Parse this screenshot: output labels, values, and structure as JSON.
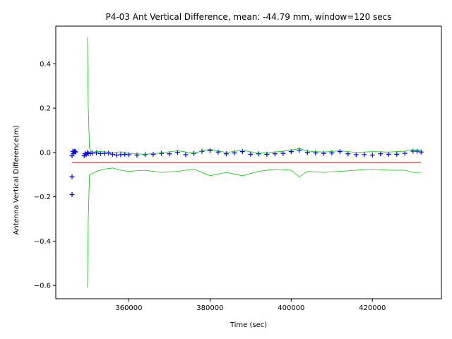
{
  "chart_data": {
    "type": "scatter",
    "title": "P4-03 Ant Vertical Difference, mean: -44.79 mm, window=120 secs",
    "xlabel": "Time (sec)",
    "ylabel": "Antenna Vertical Difference(m)",
    "xlim": [
      342000,
      437000
    ],
    "ylim": [
      -0.66,
      0.57
    ],
    "x_ticks": [
      360000,
      380000,
      400000,
      420000
    ],
    "x_tick_labels": [
      "360000",
      "380000",
      "400000",
      "420000"
    ],
    "y_ticks": [
      -0.6,
      -0.4,
      -0.2,
      0.0,
      0.2,
      0.4
    ],
    "y_tick_labels": [
      "−0.6",
      "−0.4",
      "−0.2",
      "0.0",
      "0.2",
      "0.4"
    ],
    "grid": false,
    "series": [
      {
        "marker": "plus",
        "color": "#0000ff",
        "x": [
          346000,
          346200,
          346300,
          346500,
          346700,
          346900,
          346000,
          346000,
          349000,
          349200,
          349500,
          349800,
          350000,
          350500,
          351000,
          352000,
          353000,
          354000,
          355000,
          356000,
          357000,
          358000,
          359000,
          360000,
          362000,
          364000,
          366000,
          368000,
          370000,
          372000,
          374000,
          376000,
          378000,
          380000,
          382000,
          384000,
          386000,
          388000,
          390000,
          392000,
          394000,
          396000,
          398000,
          400000,
          402000,
          404000,
          406000,
          408000,
          410000,
          412000,
          414000,
          416000,
          418000,
          420000,
          422000,
          424000,
          426000,
          428000,
          430000,
          431000,
          432000
        ],
        "y": [
          -0.015,
          0.005,
          -0.005,
          0.003,
          0.006,
          0.002,
          -0.11,
          -0.19,
          -0.015,
          -0.005,
          -0.01,
          0.0,
          -0.005,
          -0.005,
          -0.003,
          -0.002,
          -0.005,
          -0.004,
          -0.003,
          -0.008,
          -0.012,
          -0.01,
          -0.008,
          -0.01,
          -0.012,
          -0.01,
          -0.008,
          -0.004,
          -0.006,
          0.0,
          -0.01,
          -0.004,
          0.005,
          0.008,
          0.002,
          -0.006,
          -0.002,
          0.004,
          -0.008,
          -0.006,
          -0.008,
          -0.006,
          -0.004,
          0.004,
          0.01,
          0.0,
          -0.002,
          -0.004,
          -0.002,
          0.004,
          -0.006,
          -0.01,
          -0.01,
          -0.012,
          -0.006,
          -0.008,
          -0.008,
          -0.004,
          0.006,
          0.006,
          0.002
        ]
      },
      {
        "style": "line",
        "color": "#00cc00",
        "x": [
          349800,
          350000,
          350300,
          351000,
          352000,
          354000,
          356000,
          358000,
          360000,
          364000,
          368000,
          372000,
          376000,
          380000,
          384000,
          388000,
          392000,
          396000,
          400000,
          402000,
          404000,
          408000,
          412000,
          416000,
          420000,
          424000,
          428000,
          430000,
          432000
        ],
        "y": [
          0.52,
          0.2,
          0.02,
          0.0,
          0.005,
          0.003,
          0.0,
          0.003,
          -0.005,
          -0.008,
          -0.002,
          0.008,
          -0.003,
          0.015,
          0.0,
          0.01,
          -0.004,
          0.002,
          0.01,
          0.018,
          0.006,
          0.002,
          0.008,
          0.0,
          0.004,
          0.002,
          0.006,
          0.012,
          0.01
        ]
      },
      {
        "style": "line",
        "color": "#00cc00",
        "x": [
          349800,
          350000,
          350300,
          351000,
          352000,
          354000,
          356000,
          358000,
          360000,
          364000,
          368000,
          372000,
          376000,
          380000,
          384000,
          388000,
          392000,
          396000,
          400000,
          402000,
          404000,
          408000,
          412000,
          416000,
          420000,
          424000,
          428000,
          430000,
          432000
        ],
        "y": [
          -0.61,
          -0.3,
          -0.1,
          -0.095,
          -0.085,
          -0.075,
          -0.07,
          -0.08,
          -0.085,
          -0.08,
          -0.09,
          -0.085,
          -0.075,
          -0.105,
          -0.09,
          -0.105,
          -0.085,
          -0.075,
          -0.08,
          -0.11,
          -0.085,
          -0.09,
          -0.085,
          -0.08,
          -0.075,
          -0.08,
          -0.08,
          -0.09,
          -0.09
        ]
      },
      {
        "style": "line",
        "color": "#e00000",
        "x": [
          346000,
          432000
        ],
        "y": [
          -0.045,
          -0.045
        ]
      }
    ]
  }
}
